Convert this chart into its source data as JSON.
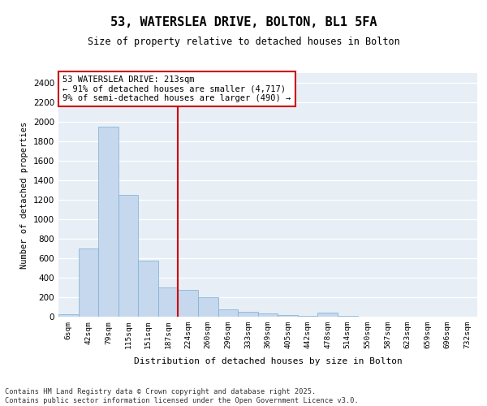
{
  "title1": "53, WATERSLEA DRIVE, BOLTON, BL1 5FA",
  "title2": "Size of property relative to detached houses in Bolton",
  "xlabel": "Distribution of detached houses by size in Bolton",
  "ylabel": "Number of detached properties",
  "bar_color": "#c5d8ed",
  "bar_edge_color": "#7aaed6",
  "bin_labels": [
    "6sqm",
    "42sqm",
    "79sqm",
    "115sqm",
    "151sqm",
    "187sqm",
    "224sqm",
    "260sqm",
    "296sqm",
    "333sqm",
    "369sqm",
    "405sqm",
    "442sqm",
    "478sqm",
    "514sqm",
    "550sqm",
    "587sqm",
    "623sqm",
    "659sqm",
    "696sqm",
    "732sqm"
  ],
  "bar_values": [
    25,
    700,
    1950,
    1250,
    575,
    300,
    275,
    200,
    75,
    50,
    30,
    15,
    5,
    40,
    5,
    0,
    0,
    0,
    0,
    0,
    0
  ],
  "red_line_bin_index": 6,
  "annotation_text": "53 WATERSLEA DRIVE: 213sqm\n← 91% of detached houses are smaller (4,717)\n9% of semi-detached houses are larger (490) →",
  "annotation_box_color": "white",
  "annotation_box_edge": "#cc0000",
  "ylim": [
    0,
    2500
  ],
  "yticks": [
    0,
    200,
    400,
    600,
    800,
    1000,
    1200,
    1400,
    1600,
    1800,
    2000,
    2200,
    2400
  ],
  "bg_color": "#e8eef5",
  "grid_color": "white",
  "footer": "Contains HM Land Registry data © Crown copyright and database right 2025.\nContains public sector information licensed under the Open Government Licence v3.0."
}
